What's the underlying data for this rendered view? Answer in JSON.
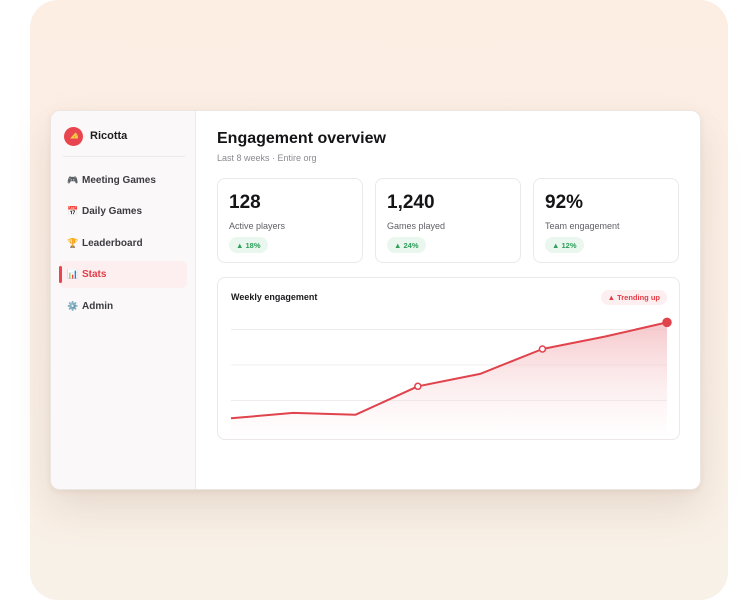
{
  "sidebar": {
    "brand": "Ricotta",
    "items": [
      {
        "icon": "🎮",
        "label": "Meeting Games"
      },
      {
        "icon": "📅",
        "label": "Daily Games"
      },
      {
        "icon": "🏆",
        "label": "Leaderboard"
      },
      {
        "icon": "📊",
        "label": "Stats",
        "active": true
      },
      {
        "icon": "⚙️",
        "label": "Admin"
      }
    ]
  },
  "header": {
    "title": "Engagement overview",
    "subtitle": "Last 8 weeks · Entire org"
  },
  "stats": [
    {
      "value": "128",
      "label": "Active players",
      "badge": "▲ 18%"
    },
    {
      "value": "1,240",
      "label": "Games played",
      "badge": "▲ 24%"
    },
    {
      "value": "92%",
      "label": "Team engagement",
      "badge": "▲ 12%"
    }
  ],
  "chart": {
    "title": "Weekly engagement",
    "badge": "▲ Trending up"
  },
  "chart_data": {
    "type": "area",
    "title": "Weekly engagement",
    "x": [
      1,
      2,
      3,
      4,
      5,
      6,
      7,
      8
    ],
    "values": [
      1.0,
      1.3,
      1.2,
      2.8,
      3.5,
      4.9,
      5.6,
      6.4
    ],
    "ylim": [
      0,
      8
    ],
    "grid": true,
    "highlighted_points": [
      4,
      6,
      8
    ],
    "colors": {
      "line": "#e0434c",
      "fill": "#f4c6c9"
    }
  },
  "colors": {
    "accent": "#e9454e",
    "positive": "#2f9e5b"
  }
}
